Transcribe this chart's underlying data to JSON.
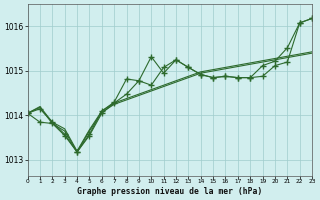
{
  "title": "Graphe pression niveau de la mer (hPa)",
  "bg_color": "#d1eeee",
  "grid_color": "#a0cccc",
  "line_color": "#2d6a2d",
  "xlim": [
    0,
    23
  ],
  "ylim": [
    1012.65,
    1016.5
  ],
  "yticks": [
    1013,
    1014,
    1015,
    1016
  ],
  "xticks": [
    0,
    1,
    2,
    3,
    4,
    5,
    6,
    7,
    8,
    9,
    10,
    11,
    12,
    13,
    14,
    15,
    16,
    17,
    18,
    19,
    20,
    21,
    22,
    23
  ],
  "series": [
    {
      "x": [
        0,
        1,
        2,
        3,
        4,
        5,
        6,
        7,
        8,
        9,
        10,
        11,
        12,
        13,
        14,
        15,
        16,
        17,
        18,
        19,
        20,
        21,
        22,
        23
      ],
      "y": [
        1014.05,
        1014.2,
        1013.85,
        1013.7,
        1013.2,
        1013.68,
        1014.1,
        1014.28,
        1014.38,
        1014.48,
        1014.58,
        1014.68,
        1014.78,
        1014.88,
        1014.98,
        1015.03,
        1015.08,
        1015.13,
        1015.18,
        1015.23,
        1015.28,
        1015.33,
        1015.38,
        1015.43
      ],
      "marker": null
    },
    {
      "x": [
        0,
        1,
        2,
        3,
        4,
        5,
        6,
        7,
        8,
        9,
        10,
        11,
        12,
        13,
        14,
        15,
        16,
        17,
        18,
        19,
        20,
        21,
        22,
        23
      ],
      "y": [
        1014.05,
        1014.18,
        1013.82,
        1013.65,
        1013.18,
        1013.65,
        1014.07,
        1014.25,
        1014.35,
        1014.45,
        1014.55,
        1014.65,
        1014.75,
        1014.85,
        1014.95,
        1015.0,
        1015.05,
        1015.1,
        1015.15,
        1015.2,
        1015.25,
        1015.3,
        1015.35,
        1015.4
      ],
      "marker": null
    },
    {
      "x": [
        0,
        1,
        2,
        3,
        4,
        5,
        6,
        7,
        8,
        9,
        10,
        11,
        12,
        13,
        14,
        15,
        16,
        17,
        18,
        19,
        20,
        21,
        22,
        23
      ],
      "y": [
        1014.05,
        1013.85,
        1013.82,
        1013.55,
        1013.18,
        1013.58,
        1014.1,
        1014.3,
        1014.82,
        1014.78,
        1014.68,
        1015.08,
        1015.25,
        1015.08,
        1014.92,
        1014.85,
        1014.88,
        1014.85,
        1014.85,
        1014.88,
        1015.12,
        1015.2,
        1016.08,
        1016.18
      ],
      "marker": "+"
    },
    {
      "x": [
        0,
        1,
        2,
        3,
        4,
        5,
        6,
        7,
        8,
        9,
        10,
        11,
        12,
        13,
        14,
        15,
        16,
        17,
        18,
        19,
        20,
        21,
        22,
        23
      ],
      "y": [
        1014.05,
        1014.15,
        1013.85,
        1013.58,
        1013.18,
        1013.55,
        1014.05,
        1014.28,
        1014.48,
        1014.78,
        1015.32,
        1014.95,
        1015.25,
        1015.08,
        1014.92,
        1014.85,
        1014.88,
        1014.85,
        1014.85,
        1015.12,
        1015.22,
        1015.52,
        1016.08,
        1016.18
      ],
      "marker": "+"
    }
  ]
}
